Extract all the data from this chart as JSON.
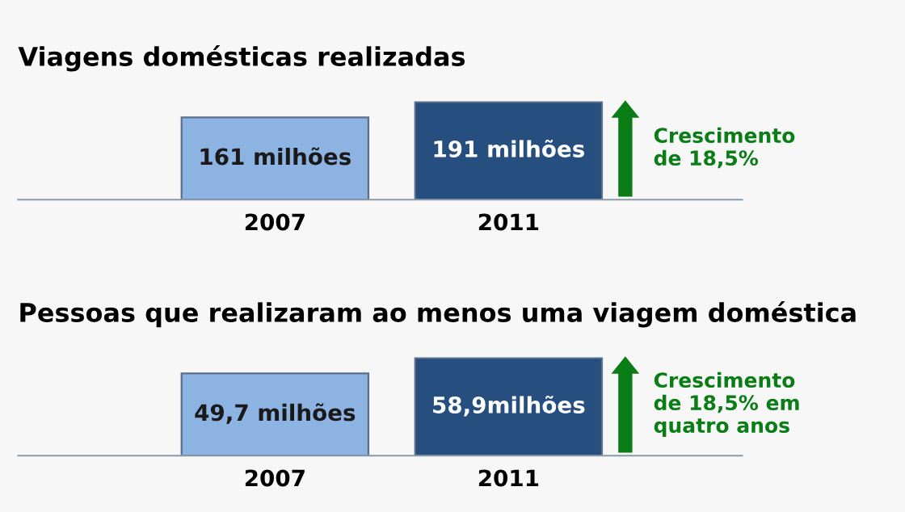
{
  "chart_data": [
    {
      "type": "bar",
      "title": "Viagens domésticas realizadas",
      "categories": [
        "2007",
        "2011"
      ],
      "values": [
        161,
        191
      ],
      "colors": [
        "#8db3e2",
        "#264f7f"
      ],
      "value_labels": [
        "161 milhões",
        "191 milhões"
      ],
      "annotations": [
        "Crescimento\nde 18,5%"
      ]
    },
    {
      "type": "bar",
      "title": "Pessoas que realizaram ao menos uma viagem doméstica",
      "categories": [
        "2007",
        "2011"
      ],
      "values": [
        49.7,
        58.9
      ],
      "colors": [
        "#8db3e2",
        "#264f7f"
      ],
      "value_labels": [
        "49,7 milhões",
        "58,9milhões"
      ],
      "annotations": [
        "Crescimento\nde 18,5% em\nquatro anos"
      ]
    }
  ]
}
